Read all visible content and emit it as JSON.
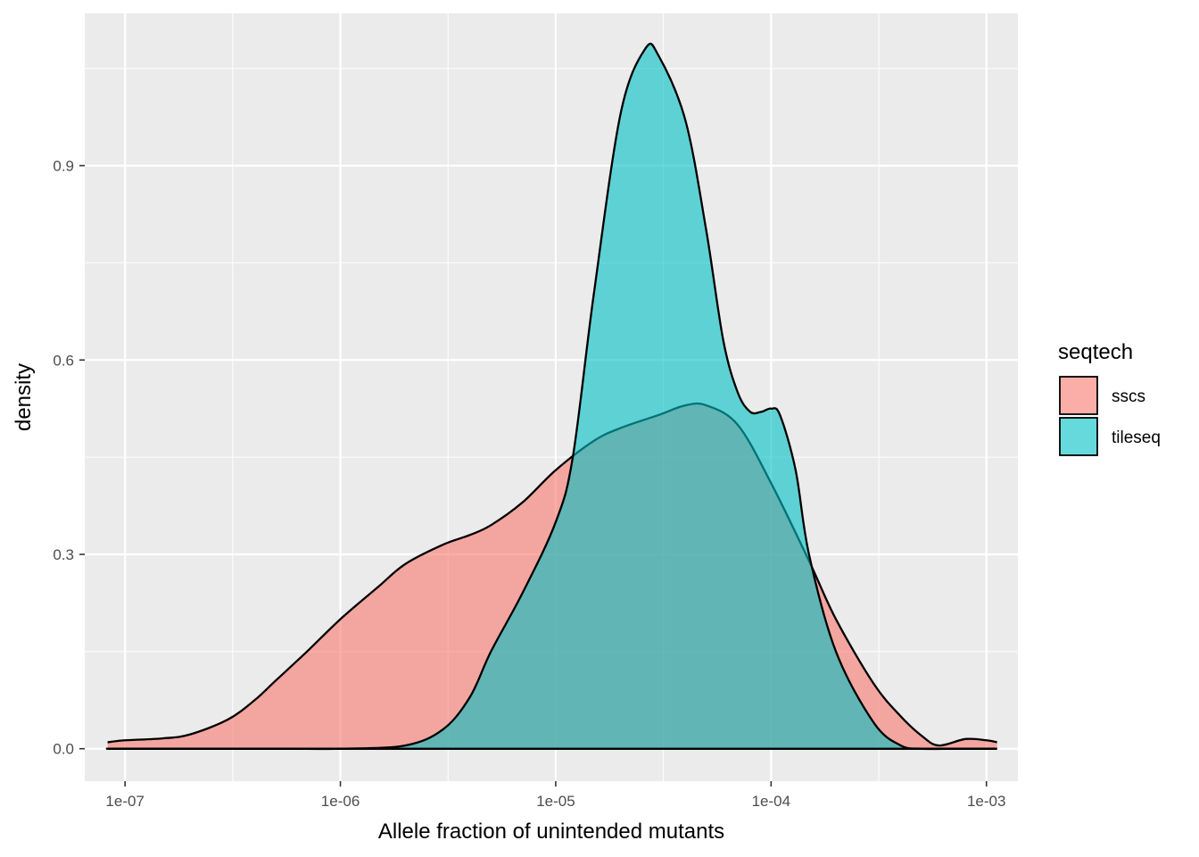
{
  "chart_data": {
    "type": "area",
    "xlabel": "Allele fraction of unintended mutants",
    "ylabel": "density",
    "x_scale": "log10",
    "xlim": [
      6.5e-08,
      0.0014
    ],
    "ylim": [
      -0.05,
      1.135
    ],
    "x_ticks": [
      1e-07,
      1e-06,
      1e-05,
      0.0001,
      0.001
    ],
    "x_tick_labels": [
      "1e-07",
      "1e-06",
      "1e-05",
      "1e-04",
      "1e-03"
    ],
    "y_ticks": [
      0.0,
      0.3,
      0.6,
      0.9
    ],
    "y_tick_labels": [
      "0.0",
      "0.3",
      "0.6",
      "0.9"
    ],
    "grid": true,
    "legend": {
      "title": "seqtech",
      "position": "right"
    },
    "series": [
      {
        "name": "sscs",
        "color": "#F8766D",
        "x": [
          8.3e-08,
          1e-07,
          1.5e-07,
          2e-07,
          3e-07,
          4e-07,
          5e-07,
          7e-07,
          1e-06,
          1.5e-06,
          2e-06,
          3e-06,
          4e-06,
          5e-06,
          7e-06,
          1e-05,
          1.5e-05,
          2e-05,
          3e-05,
          4e-05,
          5e-05,
          7e-05,
          0.0001,
          0.00015,
          0.0002,
          0.0003,
          0.0004,
          0.0005,
          0.0006,
          0.0008,
          0.001,
          0.00112
        ],
        "y": [
          0.01,
          0.013,
          0.016,
          0.022,
          0.045,
          0.075,
          0.105,
          0.15,
          0.2,
          0.25,
          0.285,
          0.315,
          0.33,
          0.345,
          0.38,
          0.43,
          0.475,
          0.495,
          0.515,
          0.53,
          0.53,
          0.5,
          0.41,
          0.29,
          0.2,
          0.1,
          0.05,
          0.02,
          0.005,
          0.015,
          0.013,
          0.01
        ]
      },
      {
        "name": "tileseq",
        "color": "#00BFC4",
        "x": [
          8.3e-08,
          1e-07,
          5e-07,
          1e-06,
          2e-06,
          3e-06,
          4e-06,
          5e-06,
          7e-06,
          1e-05,
          1.2e-05,
          1.5e-05,
          2e-05,
          2.6e-05,
          3e-05,
          4e-05,
          5e-05,
          6e-05,
          7e-05,
          8e-05,
          9e-05,
          0.0001,
          0.00011,
          0.00013,
          0.00015,
          0.0002,
          0.0003,
          0.0004,
          0.0005,
          0.0007,
          0.001,
          0.00112
        ],
        "y": [
          0.0,
          0.0,
          0.0,
          0.0,
          0.005,
          0.03,
          0.08,
          0.15,
          0.24,
          0.35,
          0.45,
          0.7,
          0.98,
          1.08,
          1.07,
          0.97,
          0.8,
          0.63,
          0.55,
          0.52,
          0.52,
          0.525,
          0.515,
          0.43,
          0.3,
          0.15,
          0.04,
          0.005,
          0.0,
          0.0,
          0.0,
          0.0
        ]
      }
    ]
  }
}
